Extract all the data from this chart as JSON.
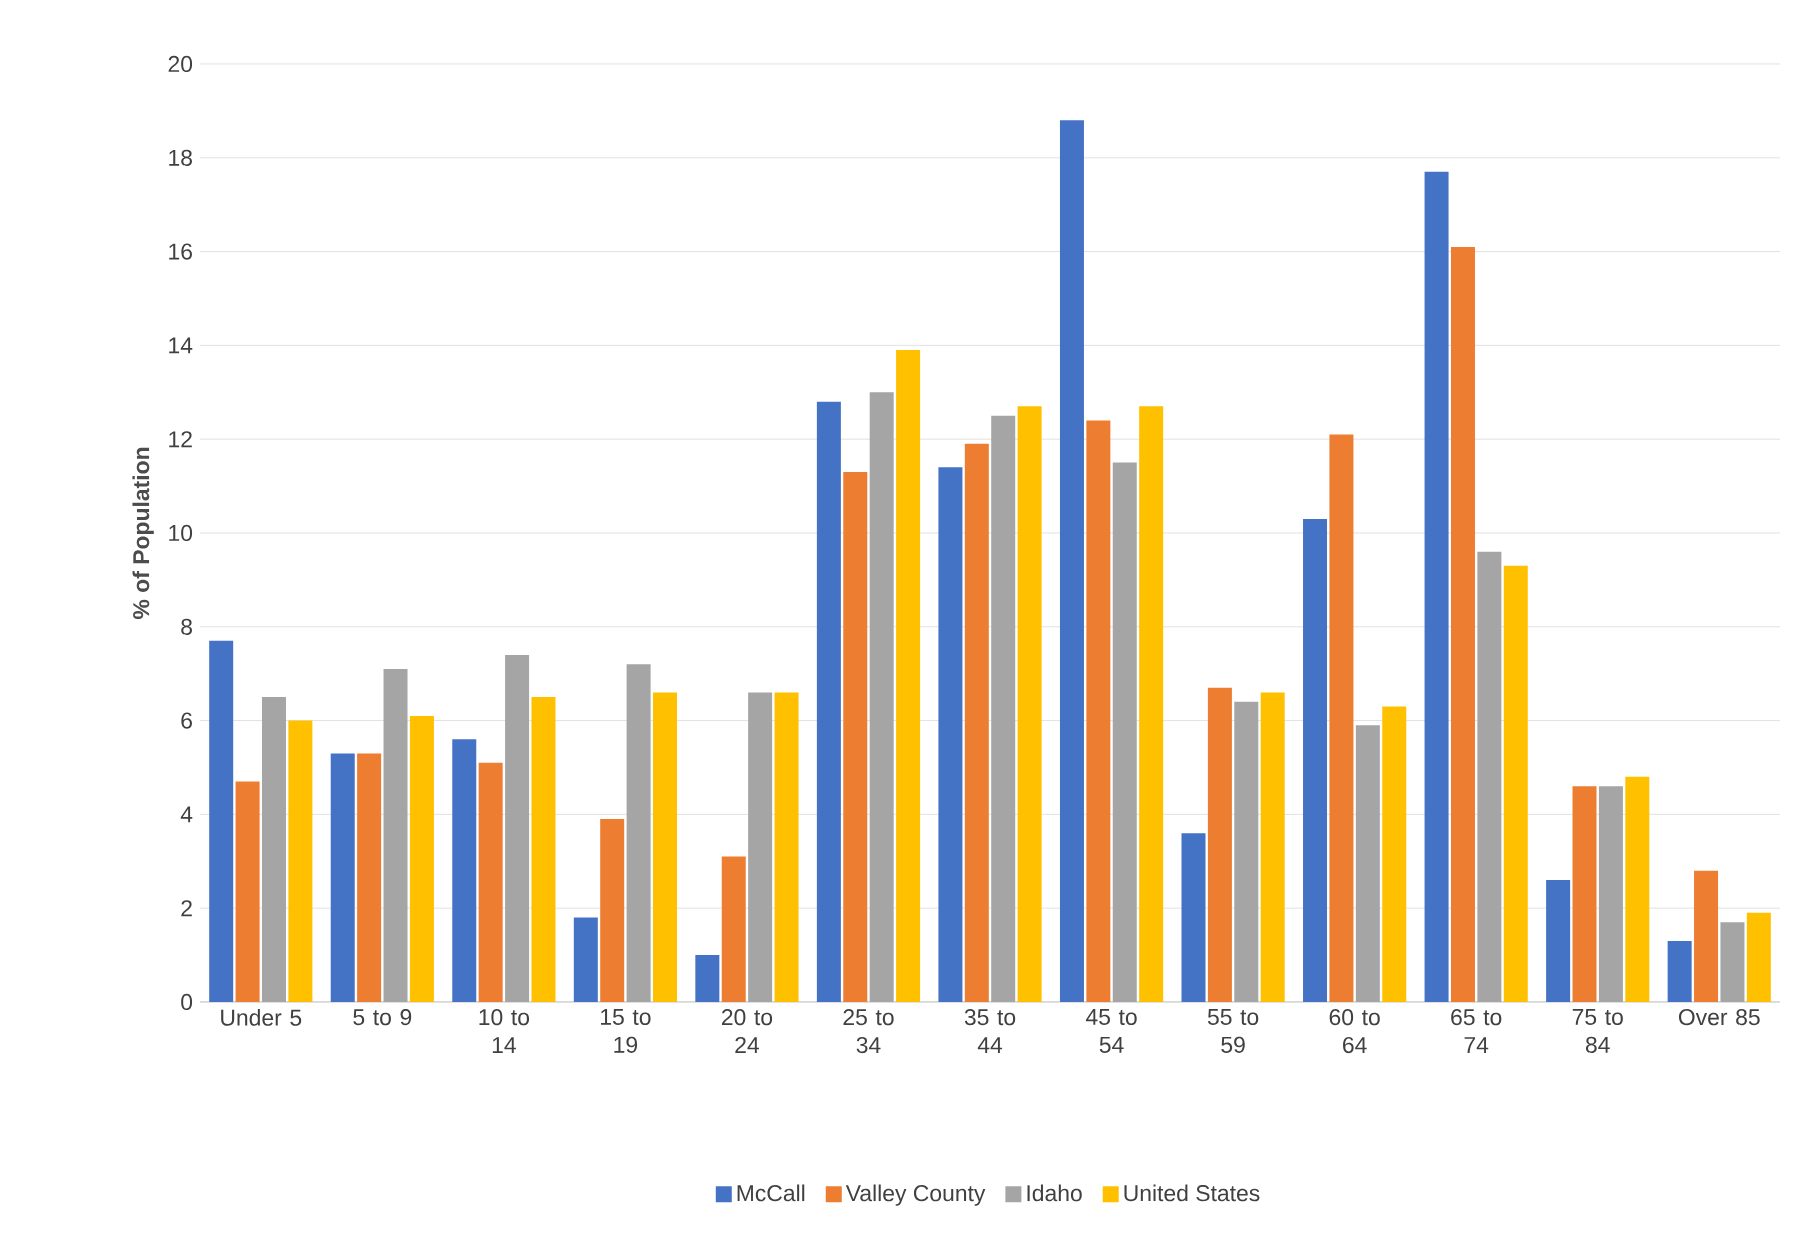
{
  "chart_data": {
    "type": "bar",
    "ylabel": "% of Population",
    "categories": [
      "Under 5",
      "5 to 9",
      "10 to 14",
      "15 to 19",
      "20 to 24",
      "25 to 34",
      "35 to 44",
      "45 to 54",
      "55 to 59",
      "60 to 64",
      "65 to 74",
      "75 to 84",
      "Over 85"
    ],
    "series": [
      {
        "name": "McCall",
        "color": "#4472c4",
        "values": [
          7.7,
          5.3,
          5.6,
          1.8,
          1.0,
          12.8,
          11.4,
          18.8,
          3.6,
          10.3,
          17.7,
          2.6,
          1.3
        ]
      },
      {
        "name": "Valley County",
        "color": "#ed7d31",
        "values": [
          4.7,
          5.3,
          5.1,
          3.9,
          3.1,
          11.3,
          11.9,
          12.4,
          6.7,
          12.1,
          16.1,
          4.6,
          2.8
        ]
      },
      {
        "name": "Idaho",
        "color": "#a5a5a5",
        "values": [
          6.5,
          7.1,
          7.4,
          7.2,
          6.6,
          13.0,
          12.5,
          11.5,
          6.4,
          5.9,
          9.6,
          4.6,
          1.7
        ]
      },
      {
        "name": "United States",
        "color": "#ffc000",
        "values": [
          6.0,
          6.1,
          6.5,
          6.6,
          6.6,
          13.9,
          12.7,
          12.7,
          6.6,
          6.3,
          9.3,
          4.8,
          1.9
        ]
      }
    ],
    "ylim": [
      0,
      20
    ],
    "yticks": [
      0,
      2,
      4,
      6,
      8,
      10,
      12,
      14,
      16,
      18,
      20
    ],
    "grid": "y",
    "legend": "bottom"
  }
}
